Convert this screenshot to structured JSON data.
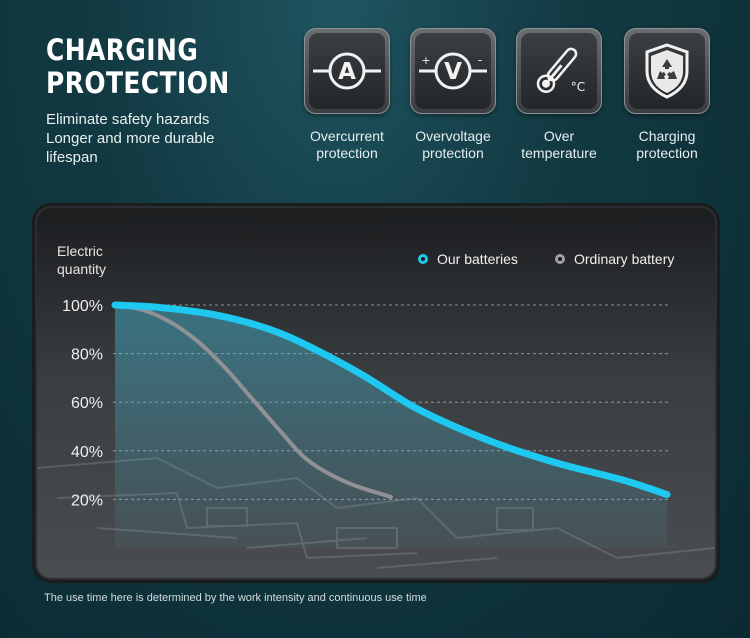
{
  "header": {
    "title_line1": "CHARGING",
    "title_line2": "PROTECTION",
    "sub_line1": "Eliminate safety hazards",
    "sub_line2": "Longer and more durable",
    "sub_line3": "lifespan"
  },
  "features": [
    {
      "icon": "ammeter-icon",
      "glyph": "A",
      "line1": "Overcurrent",
      "line2": "protection"
    },
    {
      "icon": "voltmeter-icon",
      "glyph": "V",
      "plus": "+",
      "minus": "-",
      "line1": "Overvoltage",
      "line2": "protection"
    },
    {
      "icon": "thermometer-icon",
      "unit": "°C",
      "line1": "Over",
      "line2": "temperature"
    },
    {
      "icon": "recycle-shield-icon",
      "line1": "Charging",
      "line2": "protection"
    }
  ],
  "chart_data": {
    "type": "line",
    "ylabel_line1": "Electric",
    "ylabel_line2": "quantity",
    "yticks": [
      "100%",
      "80%",
      "60%",
      "40%",
      "20%"
    ],
    "ylim": [
      0,
      100
    ],
    "grid": true,
    "legend_position": "top-right",
    "series": [
      {
        "name": "Our batteries",
        "color": "#1ec8f0",
        "points": [
          [
            0,
            100
          ],
          [
            8,
            99
          ],
          [
            18,
            96
          ],
          [
            28,
            90
          ],
          [
            36,
            82
          ],
          [
            45,
            71
          ],
          [
            55,
            57
          ],
          [
            68,
            44
          ],
          [
            80,
            35
          ],
          [
            92,
            28
          ],
          [
            100,
            22
          ]
        ]
      },
      {
        "name": "Ordinary battery",
        "color": "#9a9a9a",
        "points": [
          [
            0,
            100
          ],
          [
            5,
            98
          ],
          [
            10,
            93
          ],
          [
            15,
            85
          ],
          [
            20,
            74
          ],
          [
            25,
            61
          ],
          [
            30,
            48
          ],
          [
            35,
            36
          ],
          [
            42,
            27
          ],
          [
            50,
            21
          ]
        ]
      }
    ]
  },
  "footnote": "The use time here is determined by the work intensity and continuous use time"
}
